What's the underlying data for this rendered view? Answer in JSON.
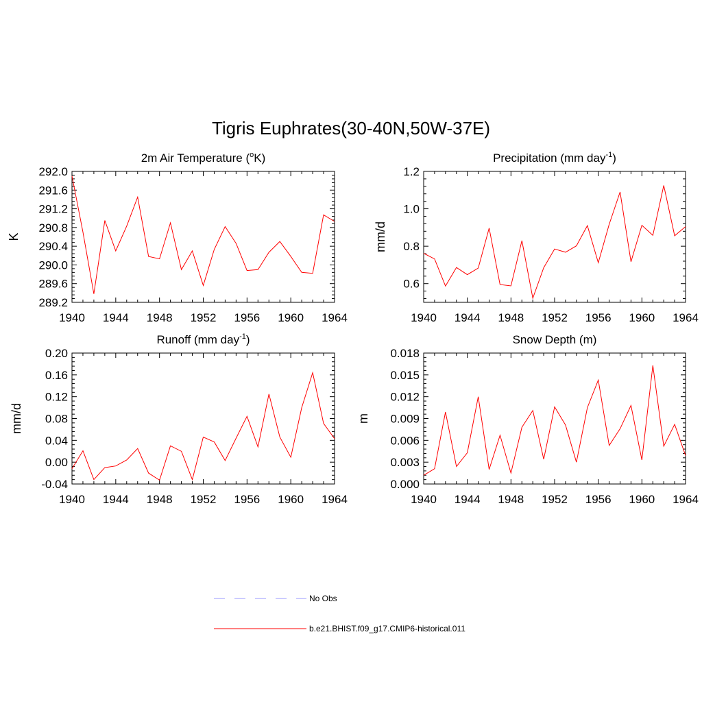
{
  "figure": {
    "title": "Tigris Euphrates(30-40N,50W-37E)",
    "series_color": "#ff0000",
    "obs_color": "#9999ff"
  },
  "legend": {
    "items": [
      {
        "label": "No Obs",
        "style": "dashed",
        "color": "#9999ff"
      },
      {
        "label": "b.e21.BHIST.f09_g17.CMIP6-historical.011",
        "style": "solid",
        "color": "#ff0000"
      }
    ]
  },
  "chart_data": [
    {
      "type": "line",
      "title_main": "2m Air Temperature (",
      "title_sup": "o",
      "title_tail": "K)",
      "ylabel": "K",
      "xlim": [
        1940,
        1964
      ],
      "ylim": [
        289.2,
        292.0
      ],
      "xticks": [
        "1940",
        "1944",
        "1948",
        "1952",
        "1956",
        "1960",
        "1964"
      ],
      "yticks": [
        "289.2",
        "289.6",
        "290.0",
        "290.4",
        "290.8",
        "291.2",
        "291.6",
        "292.0"
      ],
      "series": [
        {
          "x": [
            1940,
            1941,
            1942,
            1943,
            1944,
            1945,
            1946,
            1947,
            1948,
            1949,
            1950,
            1951,
            1952,
            1953,
            1954,
            1955,
            1956,
            1957,
            1958,
            1959,
            1960,
            1961,
            1962,
            1963,
            1964
          ],
          "values": [
            291.9,
            290.7,
            289.38,
            290.95,
            290.3,
            290.83,
            291.45,
            290.18,
            290.13,
            290.9,
            289.9,
            290.3,
            289.56,
            290.33,
            290.82,
            290.46,
            289.88,
            289.9,
            290.27,
            290.5,
            290.18,
            289.84,
            289.82,
            291.07,
            290.93
          ]
        }
      ]
    },
    {
      "type": "line",
      "title_main": "Precipitation (mm day",
      "title_sup": "-1",
      "title_tail": ")",
      "ylabel": "mm/d",
      "xlim": [
        1940,
        1964
      ],
      "ylim": [
        0.5,
        1.2
      ],
      "xticks": [
        "1940",
        "1944",
        "1948",
        "1952",
        "1956",
        "1960",
        "1964"
      ],
      "yticks": [
        "0.6",
        "0.8",
        "1.0",
        "1.2"
      ],
      "series": [
        {
          "x": [
            1940,
            1941,
            1942,
            1943,
            1944,
            1945,
            1946,
            1947,
            1948,
            1949,
            1950,
            1951,
            1952,
            1953,
            1954,
            1955,
            1956,
            1957,
            1958,
            1959,
            1960,
            1961,
            1962,
            1963,
            1964
          ],
          "values": [
            0.762,
            0.732,
            0.587,
            0.686,
            0.648,
            0.683,
            0.897,
            0.595,
            0.588,
            0.83,
            0.522,
            0.685,
            0.785,
            0.768,
            0.802,
            0.91,
            0.712,
            0.917,
            1.09,
            0.717,
            0.912,
            0.858,
            1.125,
            0.856,
            0.905
          ]
        }
      ]
    },
    {
      "type": "line",
      "title_main": "Runoff (mm day",
      "title_sup": "-1",
      "title_tail": ")",
      "ylabel": "mm/d",
      "xlim": [
        1940,
        1964
      ],
      "ylim": [
        -0.04,
        0.2
      ],
      "xticks": [
        "1940",
        "1944",
        "1948",
        "1952",
        "1956",
        "1960",
        "1964"
      ],
      "yticks": [
        "-0.04",
        "0.00",
        "0.04",
        "0.08",
        "0.12",
        "0.16",
        "0.20"
      ],
      "series": [
        {
          "x": [
            1940,
            1941,
            1942,
            1943,
            1944,
            1945,
            1946,
            1947,
            1948,
            1949,
            1950,
            1951,
            1952,
            1953,
            1954,
            1955,
            1956,
            1957,
            1958,
            1959,
            1960,
            1961,
            1962,
            1963,
            1964
          ],
          "values": [
            -0.012,
            0.021,
            -0.032,
            -0.01,
            -0.007,
            0.004,
            0.025,
            -0.02,
            -0.033,
            0.03,
            0.02,
            -0.032,
            0.046,
            0.037,
            0.003,
            0.044,
            0.084,
            0.028,
            0.125,
            0.046,
            0.009,
            0.1,
            0.164,
            0.071,
            0.043
          ]
        }
      ]
    },
    {
      "type": "line",
      "title_main": "Snow Depth (m)",
      "title_sup": "",
      "title_tail": "",
      "ylabel": "m",
      "xlim": [
        1940,
        1964
      ],
      "ylim": [
        0.0,
        0.018
      ],
      "xticks": [
        "1940",
        "1944",
        "1948",
        "1952",
        "1956",
        "1960",
        "1964"
      ],
      "yticks": [
        "0.000",
        "0.003",
        "0.006",
        "0.009",
        "0.012",
        "0.015",
        "0.018"
      ],
      "series": [
        {
          "x": [
            1940,
            1941,
            1942,
            1943,
            1944,
            1945,
            1946,
            1947,
            1948,
            1949,
            1950,
            1951,
            1952,
            1953,
            1954,
            1955,
            1956,
            1957,
            1958,
            1959,
            1960,
            1961,
            1962,
            1963,
            1964
          ],
          "values": [
            0.0012,
            0.0021,
            0.0099,
            0.0024,
            0.0043,
            0.012,
            0.002,
            0.0067,
            0.0015,
            0.0078,
            0.0101,
            0.0034,
            0.0106,
            0.0081,
            0.003,
            0.0105,
            0.0143,
            0.0053,
            0.0076,
            0.0108,
            0.0033,
            0.0163,
            0.0052,
            0.0082,
            0.0039
          ]
        }
      ]
    }
  ]
}
